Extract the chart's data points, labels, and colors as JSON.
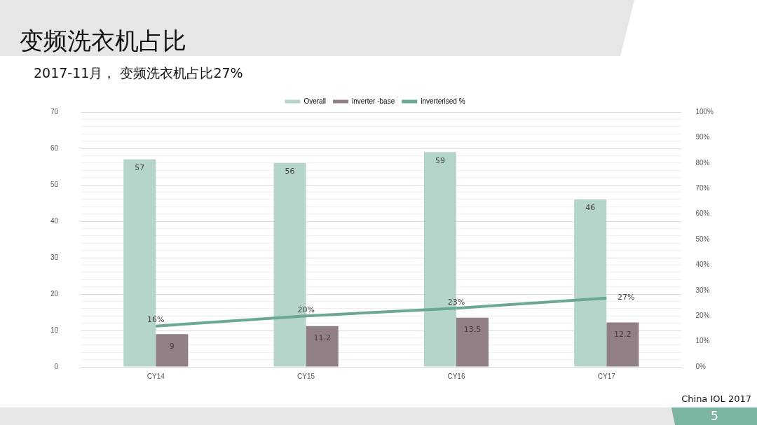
{
  "chart_data": {
    "type": "bar",
    "title": "变频洗衣机占比",
    "subtitle": "2017-11月， 变频洗衣机占比27%",
    "categories": [
      "CY14",
      "CY15",
      "CY16",
      "CY17"
    ],
    "series": [
      {
        "name": "Overall",
        "color": "#b5d5cb",
        "values": [
          57,
          56,
          59,
          46
        ],
        "value_labels": [
          "57",
          "56",
          "59",
          "46"
        ]
      },
      {
        "name": "inverter -base",
        "color": "#917f86",
        "values": [
          9,
          11.2,
          13.5,
          12.2
        ],
        "value_labels": [
          "9",
          "11.2",
          "13.5",
          "12.2"
        ]
      },
      {
        "name": "inverterised %",
        "type": "line",
        "axis": "y2",
        "color": "#6aa893",
        "values": [
          16,
          20,
          23,
          27
        ],
        "value_labels": [
          "16%",
          "20%",
          "23%",
          "27%"
        ]
      }
    ],
    "ylim": [
      0,
      70
    ],
    "yticks": [
      0,
      {
        "value": 2,
        "label": null
      },
      {
        "value": 4,
        "label": null
      },
      {
        "value": 6,
        "label": null
      },
      {
        "value": 8,
        "label": null
      },
      10,
      {
        "value": 12,
        "label": null
      },
      {
        "value": 14,
        "label": null
      },
      {
        "value": 16,
        "label": null
      },
      {
        "value": 18,
        "label": null
      },
      20,
      {
        "value": 22,
        "label": null
      },
      {
        "value": 24,
        "label": null
      },
      {
        "value": 26,
        "label": null
      },
      {
        "value": 28,
        "label": null
      },
      30,
      {
        "value": 32,
        "label": null
      },
      {
        "value": 34,
        "label": null
      },
      {
        "value": 36,
        "label": null
      },
      {
        "value": 38,
        "label": null
      },
      40,
      {
        "value": 42,
        "label": null
      },
      {
        "value": 44,
        "label": null
      },
      {
        "value": 46,
        "label": null
      },
      {
        "value": 48,
        "label": null
      },
      50,
      {
        "value": 52,
        "label": null
      },
      {
        "value": 54,
        "label": null
      },
      {
        "value": 56,
        "label": null
      },
      {
        "value": 58,
        "label": null
      },
      60,
      {
        "value": 62,
        "label": null
      },
      {
        "value": 64,
        "label": null
      },
      {
        "value": 66,
        "label": null
      },
      {
        "value": 68,
        "label": null
      },
      70
    ],
    "y2lim": [
      0,
      100
    ],
    "y2ticks": [
      {
        "value": 0,
        "label": "0%"
      },
      {
        "value": 10,
        "label": "10%"
      },
      {
        "value": 20,
        "label": "20%"
      },
      {
        "value": 30,
        "label": "30%"
      },
      {
        "value": 40,
        "label": "40%"
      },
      {
        "value": 50,
        "label": "50%"
      },
      {
        "value": 60,
        "label": "60%"
      },
      {
        "value": 70,
        "label": "70%"
      },
      {
        "value": 80,
        "label": "80%"
      },
      {
        "value": 90,
        "label": "90%"
      },
      {
        "value": 100,
        "label": "100%"
      }
    ],
    "grid": "y",
    "legend": "top",
    "marker": "none",
    "line_style": "solid",
    "annotations": [
      "China IOL 2017",
      "5"
    ]
  }
}
